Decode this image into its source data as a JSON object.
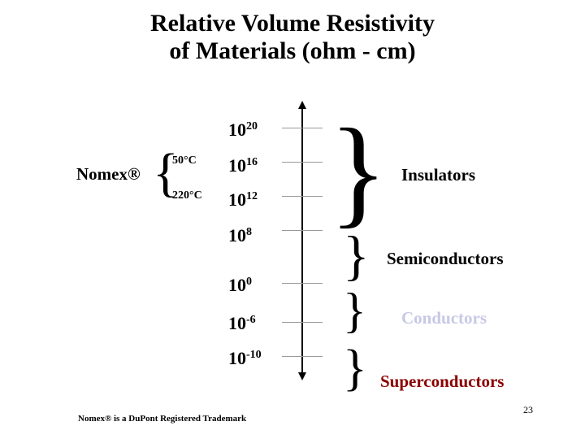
{
  "title": {
    "line1": "Relative Volume Resistivity",
    "line2": "of Materials (ohm - cm)"
  },
  "scale": [
    {
      "base": "10",
      "exp": "20"
    },
    {
      "base": "10",
      "exp": "16"
    },
    {
      "base": "10",
      "exp": "12"
    },
    {
      "base": "10",
      "exp": "8"
    },
    {
      "base": "10",
      "exp": "0"
    },
    {
      "base": "10",
      "exp": "-6"
    },
    {
      "base": "10",
      "exp": "-10"
    }
  ],
  "nomex": {
    "label": "Nomex®",
    "temps": [
      "50°C",
      "220°C"
    ]
  },
  "categories": [
    {
      "label": "Insulators",
      "color": "#000000"
    },
    {
      "label": "Semiconductors",
      "color": "#000000"
    },
    {
      "label": "Conductors",
      "color": "#c8c8e6"
    },
    {
      "label": "Superconductors",
      "color": "#8b0000"
    }
  ],
  "footnote": "Nomex® is a DuPont Registered Trademark",
  "page_number": "23"
}
